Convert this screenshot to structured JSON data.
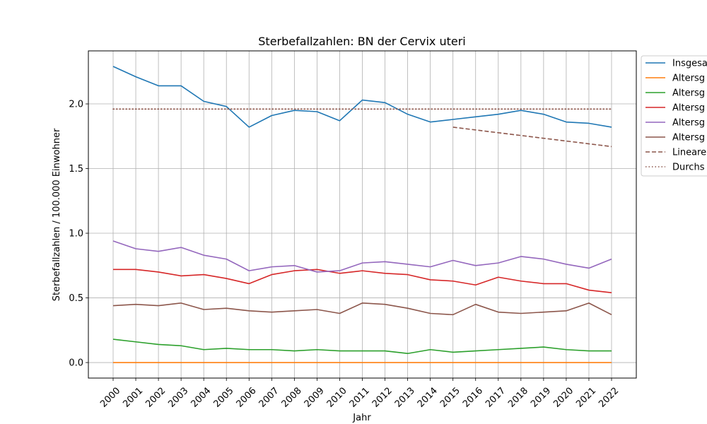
{
  "chart_data": {
    "type": "line",
    "title": "Sterbefallzahlen: BN der Cervix uteri",
    "xlabel": "Jahr",
    "ylabel": "Sterbefallzahlen / 100.000 Einwohner",
    "categories": [
      "2000",
      "2001",
      "2002",
      "2003",
      "2004",
      "2005",
      "2006",
      "2007",
      "2008",
      "2009",
      "2010",
      "2011",
      "2012",
      "2013",
      "2014",
      "2015",
      "2016",
      "2017",
      "2018",
      "2019",
      "2020",
      "2021",
      "2022"
    ],
    "ylim": [
      -0.12,
      2.41
    ],
    "yticks": [
      0.0,
      0.5,
      1.0,
      1.5,
      2.0
    ],
    "ytick_labels": [
      "0.0",
      "0.5",
      "1.0",
      "1.5",
      "2.0"
    ],
    "grid": true,
    "legend_position": "outside-right",
    "series": [
      {
        "name": "Insgesa",
        "color": "#1f77b4",
        "style": "solid",
        "values": [
          2.29,
          2.21,
          2.14,
          2.14,
          2.02,
          1.98,
          1.82,
          1.91,
          1.95,
          1.94,
          1.87,
          2.03,
          2.01,
          1.92,
          1.86,
          1.88,
          1.9,
          1.92,
          1.95,
          1.92,
          1.86,
          1.85,
          1.82
        ]
      },
      {
        "name": "Altersg",
        "color": "#ff7f0e",
        "style": "solid",
        "values": [
          0.0,
          0.0,
          0.0,
          0.0,
          0.0,
          0.0,
          0.0,
          0.0,
          0.0,
          0.0,
          0.0,
          0.0,
          0.0,
          0.0,
          0.0,
          0.0,
          0.0,
          0.0,
          0.0,
          0.0,
          0.0,
          0.0,
          0.0
        ]
      },
      {
        "name": "Altersg",
        "color": "#2ca02c",
        "style": "solid",
        "values": [
          0.18,
          0.16,
          0.14,
          0.13,
          0.1,
          0.11,
          0.1,
          0.1,
          0.09,
          0.1,
          0.09,
          0.09,
          0.09,
          0.07,
          0.1,
          0.08,
          0.09,
          0.1,
          0.11,
          0.12,
          0.1,
          0.09,
          0.09
        ]
      },
      {
        "name": "Altersg",
        "color": "#d62728",
        "style": "solid",
        "values": [
          0.72,
          0.72,
          0.7,
          0.67,
          0.68,
          0.65,
          0.61,
          0.68,
          0.71,
          0.72,
          0.69,
          0.71,
          0.69,
          0.68,
          0.64,
          0.63,
          0.6,
          0.66,
          0.63,
          0.61,
          0.61,
          0.56,
          0.54
        ]
      },
      {
        "name": "Altersg",
        "color": "#9467bd",
        "style": "solid",
        "values": [
          0.94,
          0.88,
          0.86,
          0.89,
          0.83,
          0.8,
          0.71,
          0.74,
          0.75,
          0.7,
          0.71,
          0.77,
          0.78,
          0.76,
          0.74,
          0.79,
          0.75,
          0.77,
          0.82,
          0.8,
          0.76,
          0.73,
          0.8
        ]
      },
      {
        "name": "Altersg",
        "color": "#8c564b",
        "style": "solid",
        "values": [
          0.44,
          0.45,
          0.44,
          0.46,
          0.41,
          0.42,
          0.4,
          0.39,
          0.4,
          0.41,
          0.38,
          0.46,
          0.45,
          0.42,
          0.38,
          0.37,
          0.45,
          0.39,
          0.38,
          0.39,
          0.4,
          0.46,
          0.37
        ]
      },
      {
        "name": "Lineare",
        "color": "#8c564b",
        "style": "dashed",
        "x": [
          "2015",
          "2022"
        ],
        "values": [
          1.82,
          1.67
        ]
      },
      {
        "name": "Durchs",
        "color": "#8c564b",
        "style": "dotted",
        "x": [
          "2000",
          "2022"
        ],
        "values": [
          1.96,
          1.96
        ]
      }
    ]
  }
}
